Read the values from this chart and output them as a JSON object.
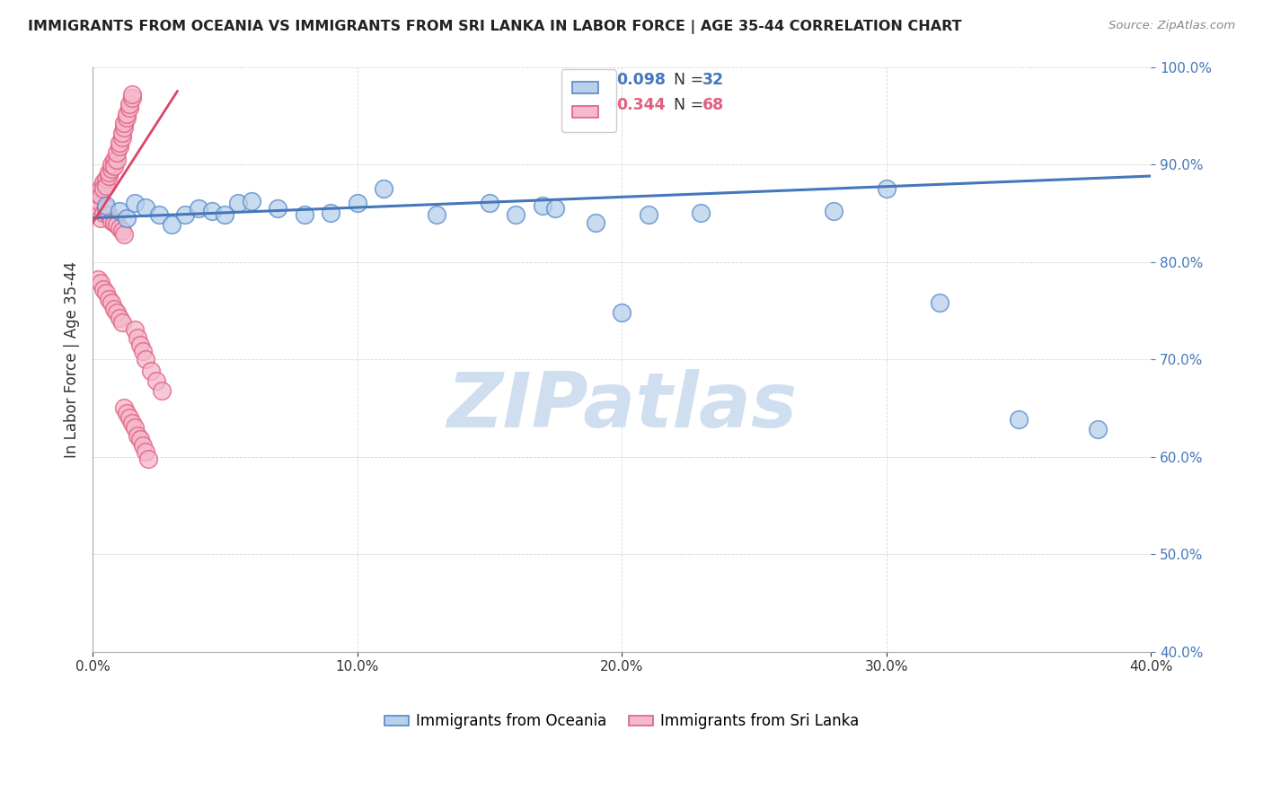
{
  "title": "IMMIGRANTS FROM OCEANIA VS IMMIGRANTS FROM SRI LANKA IN LABOR FORCE | AGE 35-44 CORRELATION CHART",
  "source": "Source: ZipAtlas.com",
  "ylabel": "In Labor Force | Age 35-44",
  "xlim": [
    0.0,
    0.4
  ],
  "ylim": [
    0.4,
    1.0
  ],
  "xticks": [
    0.0,
    0.1,
    0.2,
    0.3,
    0.4
  ],
  "yticks": [
    0.4,
    0.5,
    0.6,
    0.7,
    0.8,
    0.9,
    1.0
  ],
  "blue_r": "0.098",
  "blue_n": "32",
  "pink_r": "0.344",
  "pink_n": "68",
  "blue_fill": "#b8d0ea",
  "blue_edge": "#5588cc",
  "pink_fill": "#f5b8cc",
  "pink_edge": "#e06080",
  "blue_line": "#4477bb",
  "pink_line": "#dd4466",
  "watermark_color": "#d0dff0",
  "label_blue": "Immigrants from Oceania",
  "label_pink": "Immigrants from Sri Lanka",
  "blue_x": [
    0.005,
    0.01,
    0.013,
    0.016,
    0.02,
    0.025,
    0.03,
    0.035,
    0.04,
    0.045,
    0.05,
    0.055,
    0.06,
    0.07,
    0.08,
    0.09,
    0.1,
    0.11,
    0.13,
    0.16,
    0.17,
    0.19,
    0.21,
    0.23,
    0.15,
    0.175,
    0.2,
    0.28,
    0.3,
    0.32,
    0.35,
    0.38
  ],
  "blue_y": [
    0.858,
    0.852,
    0.845,
    0.86,
    0.856,
    0.848,
    0.838,
    0.848,
    0.855,
    0.852,
    0.848,
    0.86,
    0.862,
    0.855,
    0.848,
    0.85,
    0.86,
    0.875,
    0.848,
    0.848,
    0.858,
    0.84,
    0.848,
    0.85,
    0.86,
    0.855,
    0.748,
    0.852,
    0.875,
    0.758,
    0.638,
    0.628
  ],
  "pink_x": [
    0.001,
    0.001,
    0.002,
    0.002,
    0.003,
    0.003,
    0.004,
    0.004,
    0.005,
    0.005,
    0.006,
    0.006,
    0.007,
    0.007,
    0.008,
    0.008,
    0.009,
    0.009,
    0.01,
    0.01,
    0.011,
    0.011,
    0.012,
    0.012,
    0.013,
    0.013,
    0.014,
    0.014,
    0.015,
    0.015,
    0.003,
    0.004,
    0.005,
    0.006,
    0.007,
    0.008,
    0.009,
    0.01,
    0.011,
    0.012,
    0.002,
    0.003,
    0.004,
    0.005,
    0.006,
    0.007,
    0.008,
    0.009,
    0.01,
    0.011,
    0.012,
    0.013,
    0.014,
    0.015,
    0.016,
    0.017,
    0.018,
    0.019,
    0.02,
    0.021,
    0.016,
    0.017,
    0.018,
    0.019,
    0.02,
    0.022,
    0.024,
    0.026
  ],
  "pink_y": [
    0.855,
    0.865,
    0.862,
    0.87,
    0.875,
    0.868,
    0.882,
    0.875,
    0.885,
    0.878,
    0.888,
    0.892,
    0.895,
    0.9,
    0.905,
    0.898,
    0.905,
    0.912,
    0.918,
    0.922,
    0.928,
    0.932,
    0.938,
    0.942,
    0.948,
    0.952,
    0.958,
    0.962,
    0.968,
    0.972,
    0.845,
    0.85,
    0.855,
    0.848,
    0.842,
    0.84,
    0.838,
    0.835,
    0.832,
    0.828,
    0.782,
    0.778,
    0.772,
    0.768,
    0.762,
    0.758,
    0.752,
    0.748,
    0.742,
    0.738,
    0.65,
    0.645,
    0.64,
    0.635,
    0.63,
    0.622,
    0.618,
    0.612,
    0.605,
    0.598,
    0.73,
    0.722,
    0.715,
    0.708,
    0.7,
    0.688,
    0.678,
    0.668
  ],
  "blue_trend_x": [
    0.0,
    0.4
  ],
  "blue_trend_y": [
    0.845,
    0.888
  ],
  "pink_trend_x": [
    0.0,
    0.032
  ],
  "pink_trend_y": [
    0.84,
    0.975
  ]
}
